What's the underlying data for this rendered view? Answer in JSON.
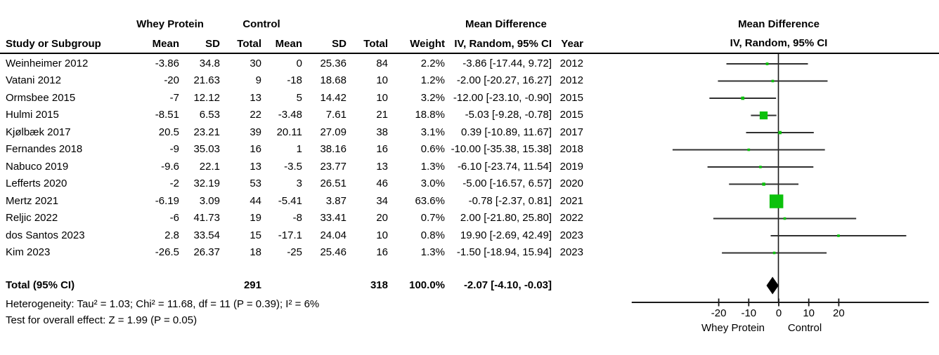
{
  "chart_data": {
    "type": "forest",
    "effect_header_line1": "Mean Difference",
    "effect_header_line2": "IV, Random, 95% CI",
    "group_headers": [
      "Whey Protein",
      "Control",
      "Mean Difference"
    ],
    "columns": [
      "Study or Subgroup",
      "Mean",
      "SD",
      "Total",
      "Mean",
      "SD",
      "Total",
      "Weight",
      "IV, Random, 95% CI",
      "Year"
    ],
    "studies": [
      {
        "study": "Weinheimer 2012",
        "wp_mean": "-3.86",
        "wp_sd": "34.8",
        "wp_total": "30",
        "c_mean": "0",
        "c_sd": "25.36",
        "c_total": "84",
        "weight": "2.2%",
        "weight_pct": 2.2,
        "md": -3.86,
        "ci_low": -17.44,
        "ci_high": 9.72,
        "ci_text": "-3.86 [-17.44, 9.72]",
        "year": "2012"
      },
      {
        "study": "Vatani 2012",
        "wp_mean": "-20",
        "wp_sd": "21.63",
        "wp_total": "9",
        "c_mean": "-18",
        "c_sd": "18.68",
        "c_total": "10",
        "weight": "1.2%",
        "weight_pct": 1.2,
        "md": -2.0,
        "ci_low": -20.27,
        "ci_high": 16.27,
        "ci_text": "-2.00 [-20.27, 16.27]",
        "year": "2012"
      },
      {
        "study": "Ormsbee 2015",
        "wp_mean": "-7",
        "wp_sd": "12.12",
        "wp_total": "13",
        "c_mean": "5",
        "c_sd": "14.42",
        "c_total": "10",
        "weight": "3.2%",
        "weight_pct": 3.2,
        "md": -12.0,
        "ci_low": -23.1,
        "ci_high": -0.9,
        "ci_text": "-12.00 [-23.10, -0.90]",
        "year": "2015"
      },
      {
        "study": "Hulmi 2015",
        "wp_mean": "-8.51",
        "wp_sd": "6.53",
        "wp_total": "22",
        "c_mean": "-3.48",
        "c_sd": "7.61",
        "c_total": "21",
        "weight": "18.8%",
        "weight_pct": 18.8,
        "md": -5.03,
        "ci_low": -9.28,
        "ci_high": -0.78,
        "ci_text": "-5.03 [-9.28, -0.78]",
        "year": "2015"
      },
      {
        "study": "Kjølbæk 2017",
        "wp_mean": "20.5",
        "wp_sd": "23.21",
        "wp_total": "39",
        "c_mean": "20.11",
        "c_sd": "27.09",
        "c_total": "38",
        "weight": "3.1%",
        "weight_pct": 3.1,
        "md": 0.39,
        "ci_low": -10.89,
        "ci_high": 11.67,
        "ci_text": "0.39 [-10.89, 11.67]",
        "year": "2017"
      },
      {
        "study": "Fernandes 2018",
        "wp_mean": "-9",
        "wp_sd": "35.03",
        "wp_total": "16",
        "c_mean": "1",
        "c_sd": "38.16",
        "c_total": "16",
        "weight": "0.6%",
        "weight_pct": 0.6,
        "md": -10.0,
        "ci_low": -35.38,
        "ci_high": 15.38,
        "ci_text": "-10.00 [-35.38, 15.38]",
        "year": "2018"
      },
      {
        "study": "Nabuco 2019",
        "wp_mean": "-9.6",
        "wp_sd": "22.1",
        "wp_total": "13",
        "c_mean": "-3.5",
        "c_sd": "23.77",
        "c_total": "13",
        "weight": "1.3%",
        "weight_pct": 1.3,
        "md": -6.1,
        "ci_low": -23.74,
        "ci_high": 11.54,
        "ci_text": "-6.10 [-23.74, 11.54]",
        "year": "2019"
      },
      {
        "study": "Lefferts 2020",
        "wp_mean": "-2",
        "wp_sd": "32.19",
        "wp_total": "53",
        "c_mean": "3",
        "c_sd": "26.51",
        "c_total": "46",
        "weight": "3.0%",
        "weight_pct": 3.0,
        "md": -5.0,
        "ci_low": -16.57,
        "ci_high": 6.57,
        "ci_text": "-5.00 [-16.57, 6.57]",
        "year": "2020"
      },
      {
        "study": "Mertz 2021",
        "wp_mean": "-6.19",
        "wp_sd": "3.09",
        "wp_total": "44",
        "c_mean": "-5.41",
        "c_sd": "3.87",
        "c_total": "34",
        "weight": "63.6%",
        "weight_pct": 63.6,
        "md": -0.78,
        "ci_low": -2.37,
        "ci_high": 0.81,
        "ci_text": "-0.78 [-2.37, 0.81]",
        "year": "2021"
      },
      {
        "study": "Reljic 2022",
        "wp_mean": "-6",
        "wp_sd": "41.73",
        "wp_total": "19",
        "c_mean": "-8",
        "c_sd": "33.41",
        "c_total": "20",
        "weight": "0.7%",
        "weight_pct": 0.7,
        "md": 2.0,
        "ci_low": -21.8,
        "ci_high": 25.8,
        "ci_text": "2.00 [-21.80, 25.80]",
        "year": "2022"
      },
      {
        "study": "dos Santos 2023",
        "wp_mean": "2.8",
        "wp_sd": "33.54",
        "wp_total": "15",
        "c_mean": "-17.1",
        "c_sd": "24.04",
        "c_total": "10",
        "weight": "0.8%",
        "weight_pct": 0.8,
        "md": 19.9,
        "ci_low": -2.69,
        "ci_high": 42.49,
        "ci_text": "19.90 [-2.69, 42.49]",
        "year": "2023"
      },
      {
        "study": "Kim 2023",
        "wp_mean": "-26.5",
        "wp_sd": "26.37",
        "wp_total": "18",
        "c_mean": "-25",
        "c_sd": "25.46",
        "c_total": "16",
        "weight": "1.3%",
        "weight_pct": 1.3,
        "md": -1.5,
        "ci_low": -18.94,
        "ci_high": 15.94,
        "ci_text": "-1.50 [-18.94, 15.94]",
        "year": "2023"
      }
    ],
    "total": {
      "label": "Total (95% CI)",
      "wp_total": "291",
      "c_total": "318",
      "weight": "100.0%",
      "md": -2.07,
      "ci_low": -4.1,
      "ci_high": -0.03,
      "ci_text": "-2.07 [-4.10, -0.03]"
    },
    "footnotes": {
      "heterogeneity": "Heterogeneity: Tau² = 1.03; Chi² = 11.68, df = 11 (P = 0.39); I² = 6%",
      "overall_effect": "Test for overall effect: Z = 1.99 (P = 0.05)"
    },
    "axis": {
      "ticks": [
        -20,
        -10,
        0,
        10,
        20
      ],
      "tick_labels": [
        "-20",
        "-10",
        "0",
        "10",
        "20"
      ],
      "range": [
        -49,
        50
      ],
      "label_left": "Whey Protein",
      "label_right": "Control"
    },
    "colors": {
      "square": "#0cc10c",
      "ci_line": "#303030",
      "diamond": "#000000",
      "axis": "#1a1a1a"
    }
  }
}
